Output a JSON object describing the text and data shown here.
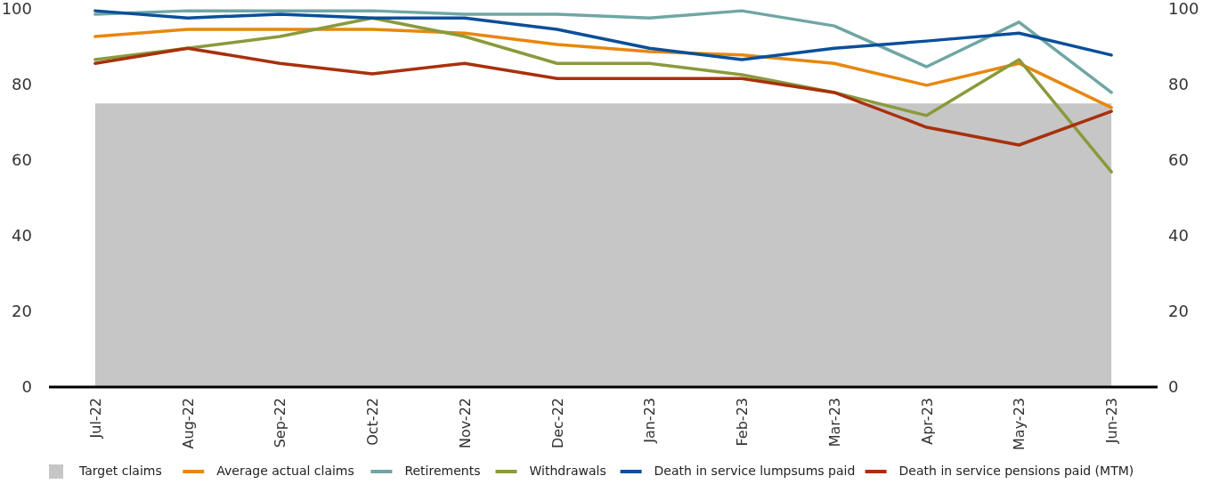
{
  "chart_data": {
    "type": "line",
    "categories": [
      "Jul-22",
      "Aug-22",
      "Sep-22",
      "Oct-22",
      "Nov-22",
      "Dec-22",
      "Jan-23",
      "Feb-23",
      "Mar-23",
      "Apr-23",
      "May-23",
      "Jun-23"
    ],
    "series": [
      {
        "name": "Target claims",
        "type": "area",
        "color": "#c6c6c6",
        "values": [
          75,
          75,
          75,
          75,
          75,
          75,
          75,
          75,
          75,
          75,
          75,
          75
        ]
      },
      {
        "name": "Average actual claims",
        "color": "#e8870e",
        "values": [
          92.7,
          94.6,
          94.6,
          94.6,
          93.6,
          90.6,
          88.7,
          87.8,
          85.6,
          79.8,
          85.6,
          73.9
        ]
      },
      {
        "name": "Retirements",
        "color": "#6fa6a4",
        "values": [
          98.6,
          99.5,
          99.5,
          99.5,
          98.6,
          98.6,
          97.6,
          99.5,
          95.5,
          84.7,
          96.5,
          77.9
        ]
      },
      {
        "name": "Withdrawals",
        "color": "#8a9a3c",
        "values": [
          86.6,
          89.6,
          92.7,
          97.6,
          92.7,
          85.6,
          85.6,
          82.6,
          77.9,
          71.8,
          86.6,
          56.9
        ]
      },
      {
        "name": "Death in service lumpsums paid",
        "color": "#0a4f9a",
        "values": [
          99.5,
          97.6,
          98.6,
          97.6,
          97.6,
          94.6,
          89.6,
          86.6,
          89.6,
          91.5,
          93.6,
          87.8
        ]
      },
      {
        "name": "Death in service pensions paid (MTM)",
        "color": "#a8300c",
        "values": [
          85.6,
          89.6,
          85.6,
          82.8,
          85.6,
          81.6,
          81.6,
          81.6,
          77.9,
          68.7,
          64,
          72.9
        ]
      }
    ],
    "ylim": [
      0,
      100
    ],
    "yticks": [
      0,
      20,
      40,
      60,
      80,
      100
    ],
    "y2lim": [
      0,
      100
    ],
    "y2ticks": [
      0,
      20,
      40,
      60,
      80,
      100
    ],
    "legend": "bottom"
  }
}
